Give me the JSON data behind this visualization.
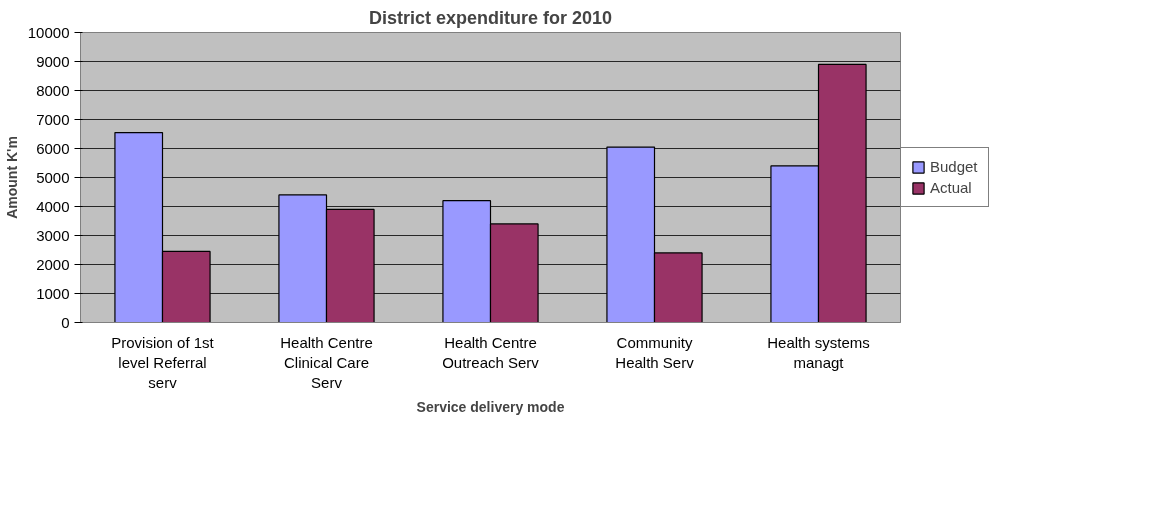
{
  "chart_data": {
    "type": "bar",
    "title": "District expenditure for 2010",
    "xlabel": "Service delivery mode",
    "ylabel": "Amount K'm",
    "categories": [
      "Provision of 1st\nlevel Referral\nserv",
      "Health Centre\nClinical Care\nServ",
      "Health Centre\nOutreach Serv",
      "Community\nHealth Serv",
      "Health systems\nmanagt"
    ],
    "series": [
      {
        "name": "Budget",
        "color": "#9999ff",
        "values": [
          6550,
          4400,
          4200,
          6050,
          5400
        ]
      },
      {
        "name": "Actual",
        "color": "#993366",
        "values": [
          2450,
          3900,
          3400,
          2400,
          8900
        ]
      }
    ],
    "ylim": [
      0,
      10000
    ],
    "yticks": [
      0,
      1000,
      2000,
      3000,
      4000,
      5000,
      6000,
      7000,
      8000,
      9000,
      10000
    ],
    "grid": "y",
    "legend": "right"
  }
}
